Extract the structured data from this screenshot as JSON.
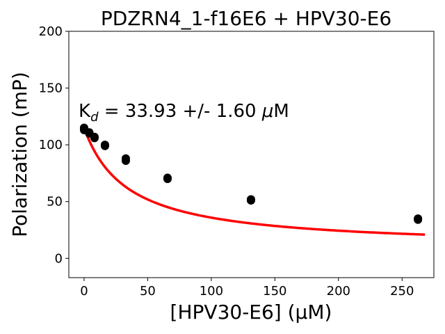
{
  "chart_data": {
    "type": "scatter",
    "title": "PDZRN4_1-f16E6 + HPV30-E6",
    "xlabel": "[HPV30-E6] (μM)",
    "ylabel": "Polarization (mP)",
    "xlim": [
      -12,
      275
    ],
    "ylim": [
      -17,
      200
    ],
    "xticks": [
      0,
      50,
      100,
      150,
      200,
      250
    ],
    "yticks": [
      0,
      50,
      100,
      150,
      200
    ],
    "annotation": {
      "prefix": "K",
      "subscript": "d",
      "text": " = 33.93 +/- 1.60 ",
      "unit_mu": "μ",
      "unit_rest": "M"
    },
    "grid": false,
    "series": [
      {
        "type": "scatter",
        "color": "#000000",
        "x": [
          0,
          0,
          0,
          4.1,
          4.1,
          8.2,
          8.2,
          16.4,
          16.4,
          32.8,
          32.8,
          65.6,
          65.6,
          131.2,
          131.2,
          262.5,
          262.5
        ],
        "y": [
          115,
          113,
          114,
          111,
          110,
          107,
          106,
          100,
          99,
          88,
          86,
          71,
          70,
          52,
          51,
          35,
          34
        ]
      },
      {
        "type": "line",
        "color": "#ff0000",
        "fit": {
          "kd": 33.93,
          "top": 115,
          "bottom": 9,
          "x_start": 0,
          "x_end": 268
        }
      }
    ]
  }
}
